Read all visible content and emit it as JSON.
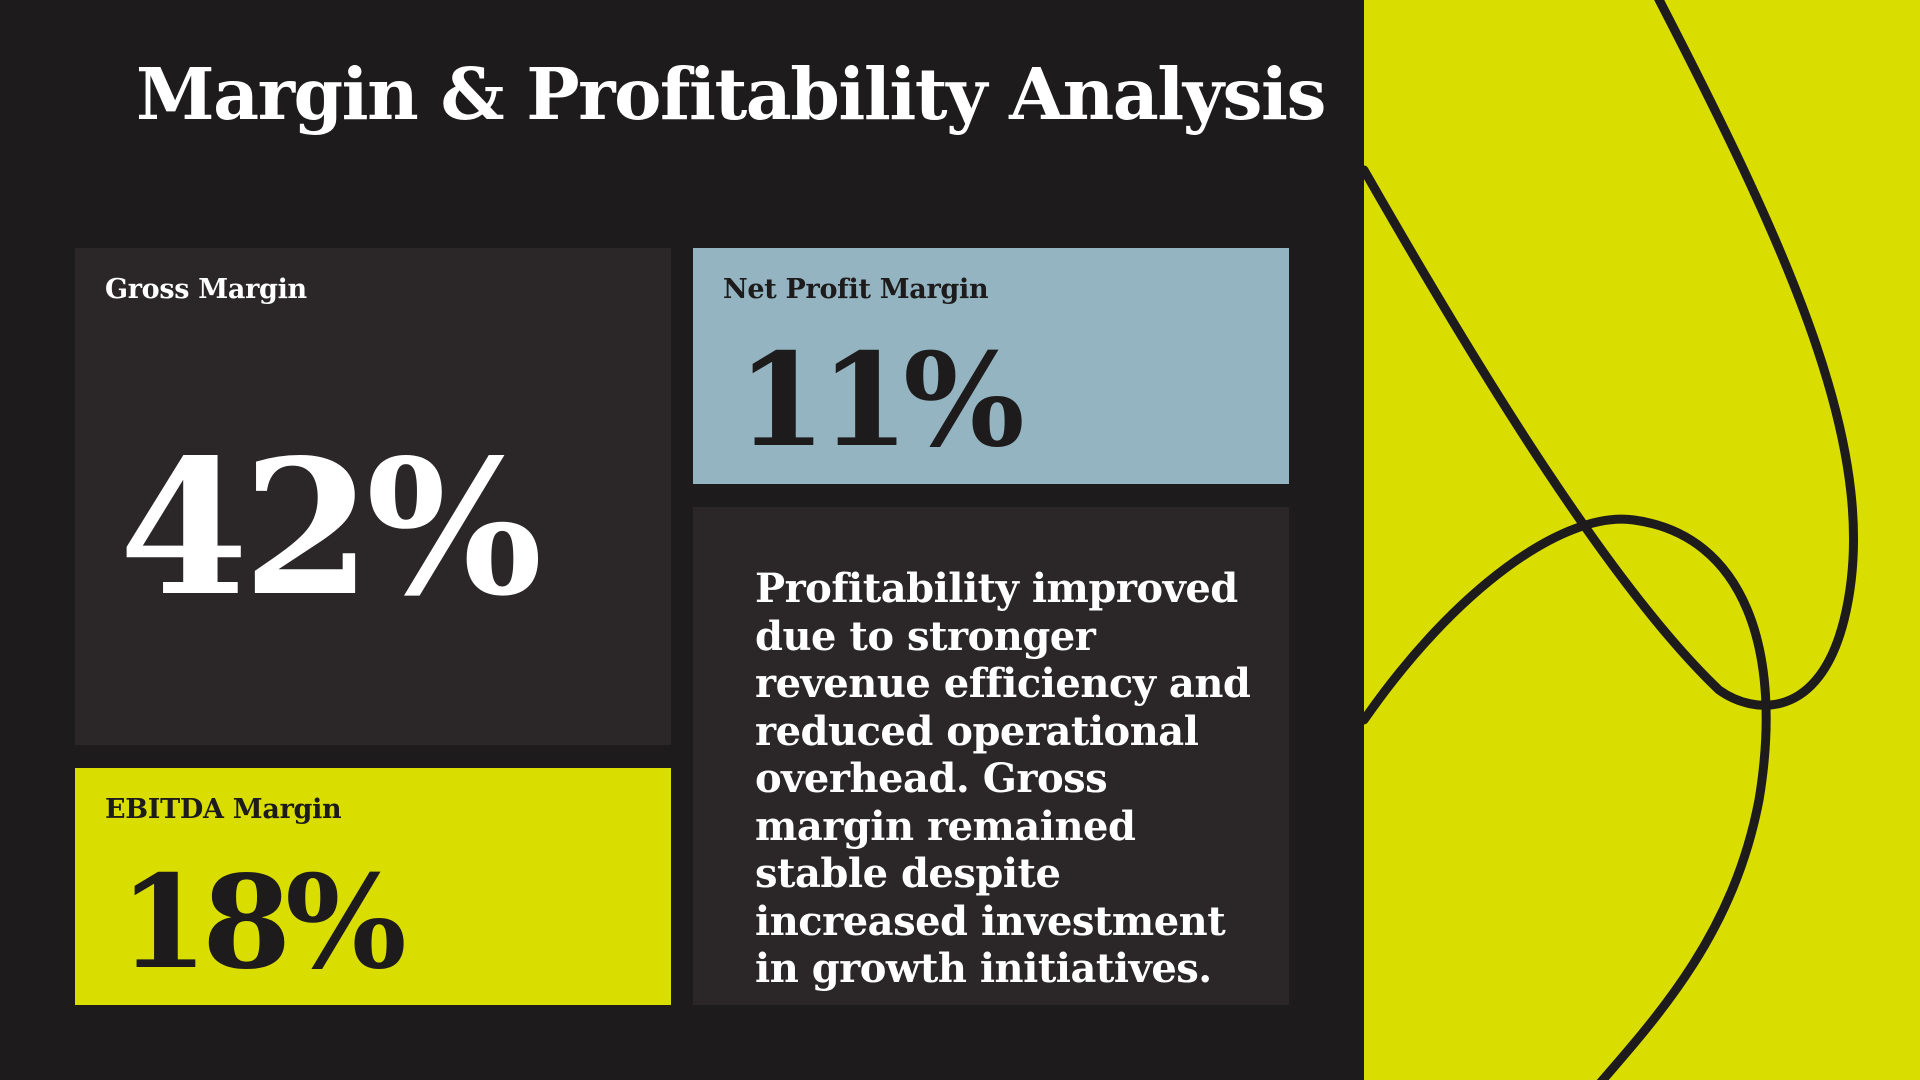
{
  "slide": {
    "title": "Margin & Profitability Analysis",
    "colors": {
      "background": "#1d1b1c",
      "card_dark": "#2b2728",
      "accent_yellow": "#dade00",
      "accent_blue": "#93b4c0",
      "text_light": "#ffffff",
      "text_dark": "#1d1b1c"
    }
  },
  "metrics": {
    "gross": {
      "label": "Gross Margin",
      "value": "42%"
    },
    "net": {
      "label": "Net Profit Margin",
      "value": "11%"
    },
    "ebitda": {
      "label": "EBITDA Margin",
      "value": "18%"
    }
  },
  "summary": {
    "text": "Profitability improved due to stronger revenue efficiency and reduced operational overhead. Gross margin remained stable despite increased investment in growth initiatives."
  }
}
